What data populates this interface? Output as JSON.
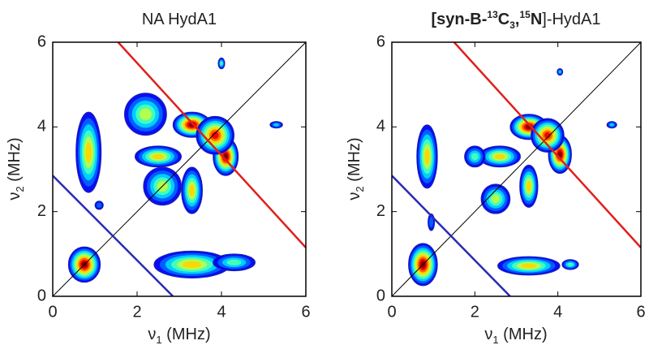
{
  "chart_data": [
    {
      "type": "contour",
      "title_parts": [
        "NA HydA1"
      ],
      "xlabel_parts": [
        "ν",
        "1",
        " (MHz)"
      ],
      "ylabel_parts": [
        "ν",
        "2",
        " (MHz)"
      ],
      "xlim": [
        0,
        6
      ],
      "ylim": [
        0,
        6
      ],
      "xticks": [
        0,
        2,
        4,
        6
      ],
      "yticks": [
        0,
        2,
        4,
        6
      ],
      "peaks": {
        "x": [
          0.75,
          0.85,
          3.3,
          4.3,
          3.3,
          4.1,
          3.85,
          2.5,
          3.3,
          2.6,
          4.0,
          5.3,
          2.2,
          1.1
        ],
        "y": [
          0.75,
          3.4,
          0.75,
          0.8,
          4.05,
          3.3,
          3.8,
          3.3,
          2.5,
          2.6,
          5.5,
          4.05,
          4.3,
          2.15
        ],
        "sx": [
          0.38,
          0.3,
          0.9,
          0.5,
          0.45,
          0.3,
          0.45,
          0.55,
          0.25,
          0.45,
          0.08,
          0.15,
          0.5,
          0.1
        ],
        "sy": [
          0.42,
          0.95,
          0.32,
          0.2,
          0.3,
          0.45,
          0.45,
          0.25,
          0.55,
          0.45,
          0.13,
          0.08,
          0.5,
          0.1
        ],
        "level": [
          1.0,
          0.7,
          0.7,
          0.45,
          1.0,
          1.0,
          0.9,
          0.7,
          0.7,
          0.6,
          0.45,
          0.35,
          0.5,
          0.25
        ]
      },
      "lines": [
        {
          "color": "#000000",
          "x": [
            0,
            6
          ],
          "y": [
            0,
            6
          ]
        },
        {
          "color": "#e0201c",
          "x": [
            1.55,
            6
          ],
          "y": [
            6,
            1.15
          ]
        },
        {
          "color": "#2a2ab4",
          "x": [
            0,
            2.85
          ],
          "y": [
            2.85,
            0
          ]
        }
      ]
    },
    {
      "type": "contour",
      "title_parts": [
        "[",
        "syn-B-",
        "13",
        "C",
        "3",
        ",",
        "15",
        "N",
        "]-HydA1"
      ],
      "xlabel_parts": [
        "ν",
        "1",
        " (MHz)"
      ],
      "ylabel_parts": [
        "ν",
        "2",
        " (MHz)"
      ],
      "xlim": [
        0,
        6
      ],
      "ylim": [
        0,
        6
      ],
      "xticks": [
        0,
        2,
        4,
        6
      ],
      "yticks": [
        0,
        2,
        4,
        6
      ],
      "peaks": {
        "x": [
          0.75,
          0.85,
          3.3,
          4.3,
          3.3,
          4.05,
          3.75,
          2.6,
          3.3,
          2.5,
          4.05,
          5.3,
          2.0,
          0.95
        ],
        "y": [
          0.75,
          3.3,
          0.72,
          0.75,
          4.0,
          3.35,
          3.8,
          3.3,
          2.6,
          2.3,
          5.3,
          4.05,
          3.3,
          1.75
        ],
        "sx": [
          0.35,
          0.25,
          0.75,
          0.2,
          0.45,
          0.28,
          0.4,
          0.5,
          0.22,
          0.35,
          0.07,
          0.12,
          0.25,
          0.08
        ],
        "sy": [
          0.5,
          0.75,
          0.22,
          0.12,
          0.3,
          0.45,
          0.4,
          0.25,
          0.5,
          0.35,
          0.08,
          0.08,
          0.25,
          0.2
        ],
        "level": [
          1.0,
          0.65,
          0.65,
          0.4,
          1.0,
          1.0,
          0.9,
          0.7,
          0.7,
          0.5,
          0.3,
          0.35,
          0.4,
          0.25
        ]
      },
      "lines": [
        {
          "color": "#000000",
          "x": [
            0,
            6
          ],
          "y": [
            0,
            6
          ]
        },
        {
          "color": "#e0201c",
          "x": [
            1.5,
            6
          ],
          "y": [
            6,
            1.15
          ]
        },
        {
          "color": "#2a2ab4",
          "x": [
            0,
            2.85
          ],
          "y": [
            2.85,
            0
          ]
        }
      ]
    }
  ]
}
